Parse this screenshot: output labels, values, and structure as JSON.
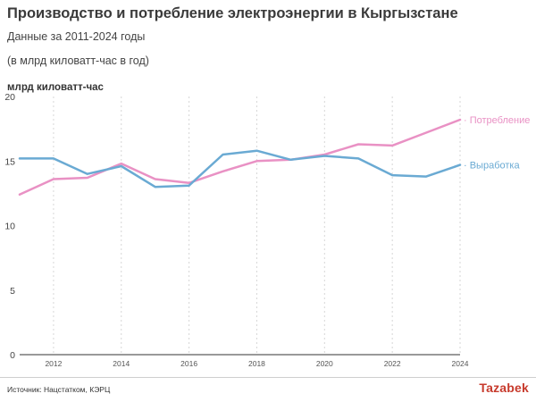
{
  "header": {
    "title": "Производство и потребление электроэнергии в Кыргызстане",
    "subtitle": "Данные за 2011-2024 годы",
    "subtitle2": "(в млрд киловатт-час в год)"
  },
  "footer": {
    "source": "Источник: Нацстатком, КЭРЦ",
    "logo": "Tazabek"
  },
  "chart_data": {
    "type": "line",
    "ylabel": "млрд киловатт-час",
    "xlabel": "",
    "x": [
      2011,
      2012,
      2013,
      2014,
      2015,
      2016,
      2017,
      2018,
      2019,
      2020,
      2021,
      2022,
      2023,
      2024
    ],
    "xticks": [
      2012,
      2014,
      2016,
      2018,
      2020,
      2022,
      2024
    ],
    "yticks": [
      0,
      5,
      10,
      15,
      20
    ],
    "xlim": [
      2011,
      2024
    ],
    "ylim": [
      0,
      20
    ],
    "grid": "vertical-dashed",
    "legend": "line-end labels",
    "series": [
      {
        "name": "Потребление",
        "color": "#e991c4",
        "values": [
          12.4,
          13.6,
          13.7,
          14.8,
          13.6,
          13.3,
          14.2,
          15.0,
          15.1,
          15.5,
          16.3,
          16.2,
          17.2,
          18.2
        ]
      },
      {
        "name": "Выработка",
        "color": "#6aaad3",
        "values": [
          15.2,
          15.2,
          14.0,
          14.6,
          13.0,
          13.1,
          15.5,
          15.8,
          15.1,
          15.4,
          15.2,
          13.9,
          13.8,
          14.7
        ]
      }
    ]
  }
}
